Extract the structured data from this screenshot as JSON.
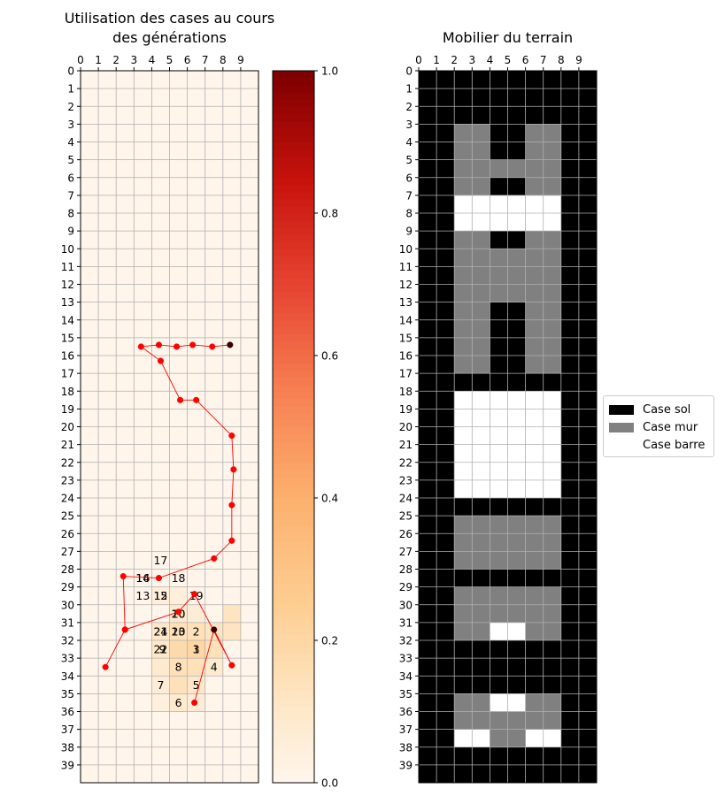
{
  "chart_data": [
    {
      "type": "heatmap",
      "title": "Utilisation des cases au cours\ndes générations",
      "x_ticks": [
        0,
        1,
        2,
        3,
        4,
        5,
        6,
        7,
        8,
        9
      ],
      "y_ticks": [
        0,
        1,
        2,
        3,
        4,
        5,
        6,
        7,
        8,
        9,
        10,
        11,
        12,
        13,
        14,
        15,
        16,
        17,
        18,
        19,
        20,
        21,
        22,
        23,
        24,
        25,
        26,
        27,
        28,
        29,
        30,
        31,
        32,
        33,
        34,
        35,
        36,
        37,
        38,
        39
      ],
      "xlim": [
        0,
        10
      ],
      "ylim": [
        40,
        0
      ],
      "grid": true,
      "colormap": "OrRd",
      "heat_cells": [
        {
          "x": 4,
          "y": 29,
          "v": 0.05
        },
        {
          "x": 5,
          "y": 29,
          "v": 0.05
        },
        {
          "x": 5,
          "y": 30,
          "v": 0.08
        },
        {
          "x": 6,
          "y": 30,
          "v": 0.06
        },
        {
          "x": 8,
          "y": 30,
          "v": 0.12
        },
        {
          "x": 8,
          "y": 31,
          "v": 0.12
        },
        {
          "x": 4,
          "y": 31,
          "v": 0.1
        },
        {
          "x": 5,
          "y": 31,
          "v": 0.14
        },
        {
          "x": 6,
          "y": 31,
          "v": 0.14
        },
        {
          "x": 7,
          "y": 31,
          "v": 0.12
        },
        {
          "x": 4,
          "y": 32,
          "v": 0.1
        },
        {
          "x": 5,
          "y": 32,
          "v": 0.18
        },
        {
          "x": 6,
          "y": 32,
          "v": 0.2
        },
        {
          "x": 7,
          "y": 32,
          "v": 0.14
        },
        {
          "x": 4,
          "y": 33,
          "v": 0.08
        },
        {
          "x": 5,
          "y": 33,
          "v": 0.14
        },
        {
          "x": 6,
          "y": 33,
          "v": 0.14
        },
        {
          "x": 7,
          "y": 33,
          "v": 0.08
        },
        {
          "x": 4,
          "y": 34,
          "v": 0.06
        },
        {
          "x": 5,
          "y": 34,
          "v": 0.14
        },
        {
          "x": 6,
          "y": 34,
          "v": 0.1
        },
        {
          "x": 4,
          "y": 35,
          "v": 0.04
        },
        {
          "x": 5,
          "y": 35,
          "v": 0.08
        },
        {
          "x": 6,
          "y": 35,
          "v": 0.06
        }
      ],
      "path": [
        {
          "x": 8.4,
          "y": 15.4,
          "end": true
        },
        {
          "x": 7.4,
          "y": 15.5
        },
        {
          "x": 6.3,
          "y": 15.4
        },
        {
          "x": 5.4,
          "y": 15.5
        },
        {
          "x": 4.4,
          "y": 15.4
        },
        {
          "x": 3.4,
          "y": 15.5
        },
        {
          "x": 4.5,
          "y": 16.3
        },
        {
          "x": 5.6,
          "y": 18.5
        },
        {
          "x": 6.5,
          "y": 18.5
        },
        {
          "x": 8.5,
          "y": 20.5
        },
        {
          "x": 8.6,
          "y": 22.4
        },
        {
          "x": 8.5,
          "y": 24.4
        },
        {
          "x": 8.5,
          "y": 26.4
        },
        {
          "x": 7.5,
          "y": 27.4
        },
        {
          "x": 4.4,
          "y": 28.5
        },
        {
          "x": 2.4,
          "y": 28.4
        },
        {
          "x": 2.5,
          "y": 31.4
        },
        {
          "x": 1.4,
          "y": 33.5
        },
        {
          "x": 2.5,
          "y": 31.4
        },
        {
          "x": 5.5,
          "y": 30.4
        },
        {
          "x": 6.4,
          "y": 29.4
        },
        {
          "x": 8.5,
          "y": 33.4
        },
        {
          "x": 7.5,
          "y": 31.4,
          "end": true
        },
        {
          "x": 6.4,
          "y": 35.5
        }
      ],
      "annotations": [
        {
          "text": "17",
          "x": 4.5,
          "y": 27.5
        },
        {
          "text": "16",
          "x": 3.5,
          "y": 28.5
        },
        {
          "text": "14",
          "x": 3.5,
          "y": 28.5
        },
        {
          "text": "18",
          "x": 5.5,
          "y": 28.5
        },
        {
          "text": "13",
          "x": 3.5,
          "y": 29.5
        },
        {
          "text": "15",
          "x": 4.5,
          "y": 29.5
        },
        {
          "text": "12",
          "x": 4.5,
          "y": 29.5
        },
        {
          "text": "19",
          "x": 6.5,
          "y": 29.5
        },
        {
          "text": "20",
          "x": 5.5,
          "y": 30.5
        },
        {
          "text": "10",
          "x": 5.5,
          "y": 30.5
        },
        {
          "text": "24",
          "x": 4.5,
          "y": 31.5
        },
        {
          "text": "21",
          "x": 4.5,
          "y": 31.5
        },
        {
          "text": "23",
          "x": 5.5,
          "y": 31.5
        },
        {
          "text": "10",
          "x": 5.5,
          "y": 31.5
        },
        {
          "text": "2",
          "x": 6.5,
          "y": 31.5
        },
        {
          "text": "22",
          "x": 4.5,
          "y": 32.5
        },
        {
          "text": "9",
          "x": 4.6,
          "y": 32.5
        },
        {
          "text": "3",
          "x": 6.5,
          "y": 32.5
        },
        {
          "text": "1",
          "x": 6.5,
          "y": 32.5
        },
        {
          "text": "8",
          "x": 5.5,
          "y": 33.5
        },
        {
          "text": "4",
          "x": 7.5,
          "y": 33.5
        },
        {
          "text": "7",
          "x": 4.5,
          "y": 34.5
        },
        {
          "text": "5",
          "x": 6.5,
          "y": 34.5
        },
        {
          "text": "6",
          "x": 5.5,
          "y": 35.5
        }
      ],
      "colorbar": {
        "ticks": [
          0.0,
          0.2,
          0.4,
          0.6,
          0.8,
          1.0
        ],
        "tick_labels": [
          "0.0",
          "0.2",
          "0.4",
          "0.6",
          "0.8",
          "1.0"
        ],
        "range": [
          0,
          1
        ]
      }
    },
    {
      "type": "heatmap",
      "title": "Mobilier du terrain",
      "x_ticks": [
        0,
        1,
        2,
        3,
        4,
        5,
        6,
        7,
        8,
        9
      ],
      "y_ticks": [
        0,
        1,
        2,
        3,
        4,
        5,
        6,
        7,
        8,
        9,
        10,
        11,
        12,
        13,
        14,
        15,
        16,
        17,
        18,
        19,
        20,
        21,
        22,
        23,
        24,
        25,
        26,
        27,
        28,
        29,
        30,
        31,
        32,
        33,
        34,
        35,
        36,
        37,
        38,
        39
      ],
      "xlim": [
        0,
        10
      ],
      "ylim": [
        40,
        0
      ],
      "grid": true,
      "legend_position": "right",
      "legend": [
        {
          "label": "Case sol",
          "color": "#000000"
        },
        {
          "label": "Case mur",
          "color": "#808080"
        },
        {
          "label": "Case barre",
          "color": "#ffffff"
        }
      ],
      "rows": [
        "0000000000",
        "0000000000",
        "0000000000",
        "0011001100",
        "0011001100",
        "0011111100",
        "0011001100",
        "0022222200",
        "0022222200",
        "0011001100",
        "0011111100",
        "0011111100",
        "0011111100",
        "0011001100",
        "0011001100",
        "0011001100",
        "0011001100",
        "0000000000",
        "0022222200",
        "0022222200",
        "0022222200",
        "0022222200",
        "0022222200",
        "0022222200",
        "0000000000",
        "0011111100",
        "0011111100",
        "0011111100",
        "0000000000",
        "0011111100",
        "0011111100",
        "0011221100",
        "0000000000",
        "0000000000",
        "0000000000",
        "0011221100",
        "0011111100",
        "0022112200",
        "0000000000",
        "0000000000"
      ],
      "cell_legend": {
        "0": "Case sol",
        "1": "Case mur",
        "2": "Case barre"
      }
    }
  ]
}
